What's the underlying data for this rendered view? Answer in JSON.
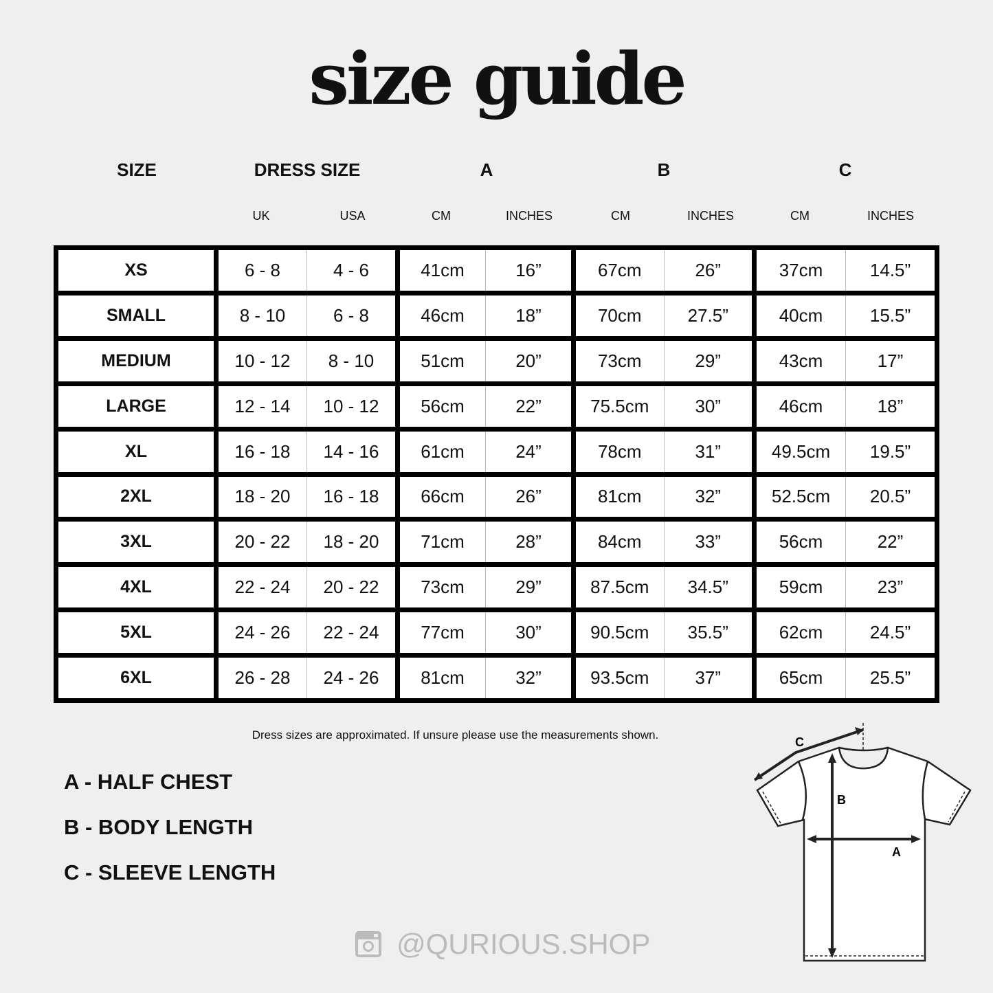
{
  "title": "size guide",
  "headers": {
    "size": "SIZE",
    "dress": "DRESS SIZE",
    "a": "A",
    "b": "B",
    "c": "C"
  },
  "subheaders": [
    "UK",
    "USA",
    "CM",
    "INCHES",
    "CM",
    "INCHES",
    "CM",
    "INCHES"
  ],
  "rows": [
    [
      "XS",
      "6 - 8",
      "4 - 6",
      "41cm",
      "16”",
      "67cm",
      "26”",
      "37cm",
      "14.5”"
    ],
    [
      "SMALL",
      "8 - 10",
      "6 - 8",
      "46cm",
      "18”",
      "70cm",
      "27.5”",
      "40cm",
      "15.5”"
    ],
    [
      "MEDIUM",
      "10 - 12",
      "8 - 10",
      "51cm",
      "20”",
      "73cm",
      "29”",
      "43cm",
      "17”"
    ],
    [
      "LARGE",
      "12 - 14",
      "10 - 12",
      "56cm",
      "22”",
      "75.5cm",
      "30”",
      "46cm",
      "18”"
    ],
    [
      "XL",
      "16 - 18",
      "14 - 16",
      "61cm",
      "24”",
      "78cm",
      "31”",
      "49.5cm",
      "19.5”"
    ],
    [
      "2XL",
      "18 - 20",
      "16 - 18",
      "66cm",
      "26”",
      "81cm",
      "32”",
      "52.5cm",
      "20.5”"
    ],
    [
      "3XL",
      "20 - 22",
      "18 - 20",
      "71cm",
      "28”",
      "84cm",
      "33”",
      "56cm",
      "22”"
    ],
    [
      "4XL",
      "22 - 24",
      "20 - 22",
      "73cm",
      "29”",
      "87.5cm",
      "34.5”",
      "59cm",
      "23”"
    ],
    [
      "5XL",
      "24 - 26",
      "22 - 24",
      "77cm",
      "30”",
      "90.5cm",
      "35.5”",
      "62cm",
      "24.5”"
    ],
    [
      "6XL",
      "26 - 28",
      "24 - 26",
      "81cm",
      "32”",
      "93.5cm",
      "37”",
      "65cm",
      "25.5”"
    ]
  ],
  "note": "Dress sizes are approximated. If unsure please use the measurements shown.",
  "legend": [
    "A - HALF CHEST",
    "B - BODY LENGTH",
    "C - SLEEVE LENGTH"
  ],
  "diagram": {
    "a": "A",
    "b": "B",
    "c": "C"
  },
  "social": {
    "icon": "instagram-icon",
    "handle": "@QURIOUS.SHOP"
  }
}
